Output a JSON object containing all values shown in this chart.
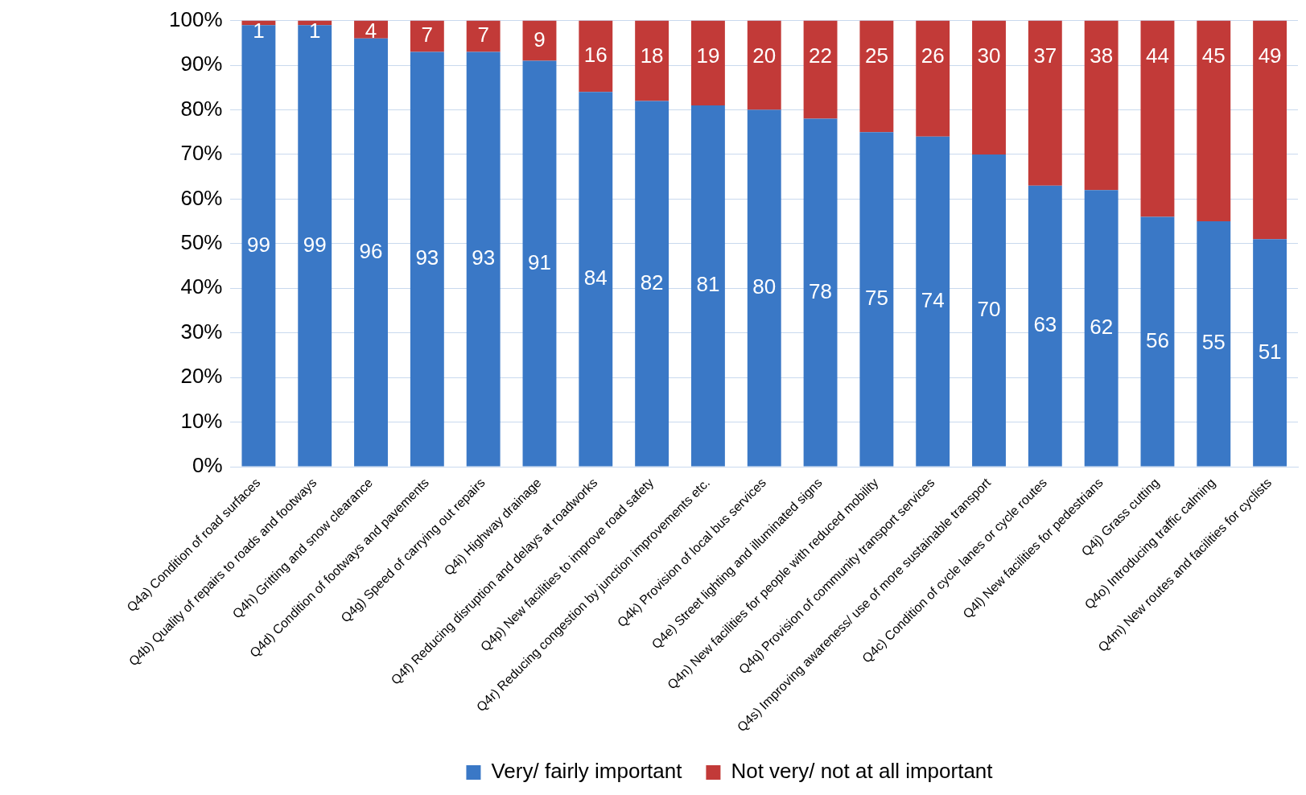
{
  "chart_data": {
    "type": "bar",
    "stacked": true,
    "categories": [
      "Q4a) Condition of road surfaces",
      "Q4b) Quality of repairs to roads and footways",
      "Q4h) Gritting and snow clearance",
      "Q4d) Condition of footways and pavements",
      "Q4g) Speed of carrying out repairs",
      "Q4i) Highway drainage",
      "Q4f) Reducing disruption and delays at roadworks",
      "Q4p) New facilities to improve road safety",
      "Q4r) Reducing congestion by junction improvements etc.",
      "Q4k) Provision of local bus services",
      "Q4e) Street lighting and illuminated signs",
      "Q4n) New facilities for people with reduced mobility",
      "Q4q) Provision of community transport services",
      "Q4s) Improving awareness/ use of more sustainable transport",
      "Q4c) Condition of cycle lanes or cycle routes",
      "Q4l) New facilities for pedestrians",
      "Q4j) Grass cutting",
      "Q4o) Introducing traffic calming",
      "Q4m) New routes and facilities for cyclists"
    ],
    "series": [
      {
        "name": "Very/ fairly important",
        "color": "#3a78c6",
        "values": [
          99,
          99,
          96,
          93,
          93,
          91,
          84,
          82,
          81,
          80,
          78,
          75,
          74,
          70,
          63,
          62,
          56,
          55,
          51
        ]
      },
      {
        "name": "Not very/ not at all important",
        "color": "#c23a38",
        "values": [
          1,
          1,
          4,
          7,
          7,
          9,
          16,
          18,
          19,
          20,
          22,
          25,
          26,
          30,
          37,
          38,
          44,
          45,
          49
        ]
      }
    ],
    "ylim": [
      0,
      100
    ],
    "yticks": [
      {
        "value": 0,
        "label": "0%"
      },
      {
        "value": 10,
        "label": "10%"
      },
      {
        "value": 20,
        "label": "20%"
      },
      {
        "value": 30,
        "label": "30%"
      },
      {
        "value": 40,
        "label": "40%"
      },
      {
        "value": 50,
        "label": "50%"
      },
      {
        "value": 60,
        "label": "60%"
      },
      {
        "value": 70,
        "label": "70%"
      },
      {
        "value": 80,
        "label": "80%"
      },
      {
        "value": 90,
        "label": "90%"
      },
      {
        "value": 100,
        "label": "100%"
      }
    ],
    "grid": "y",
    "legend": "bottom",
    "data_labels": true
  }
}
